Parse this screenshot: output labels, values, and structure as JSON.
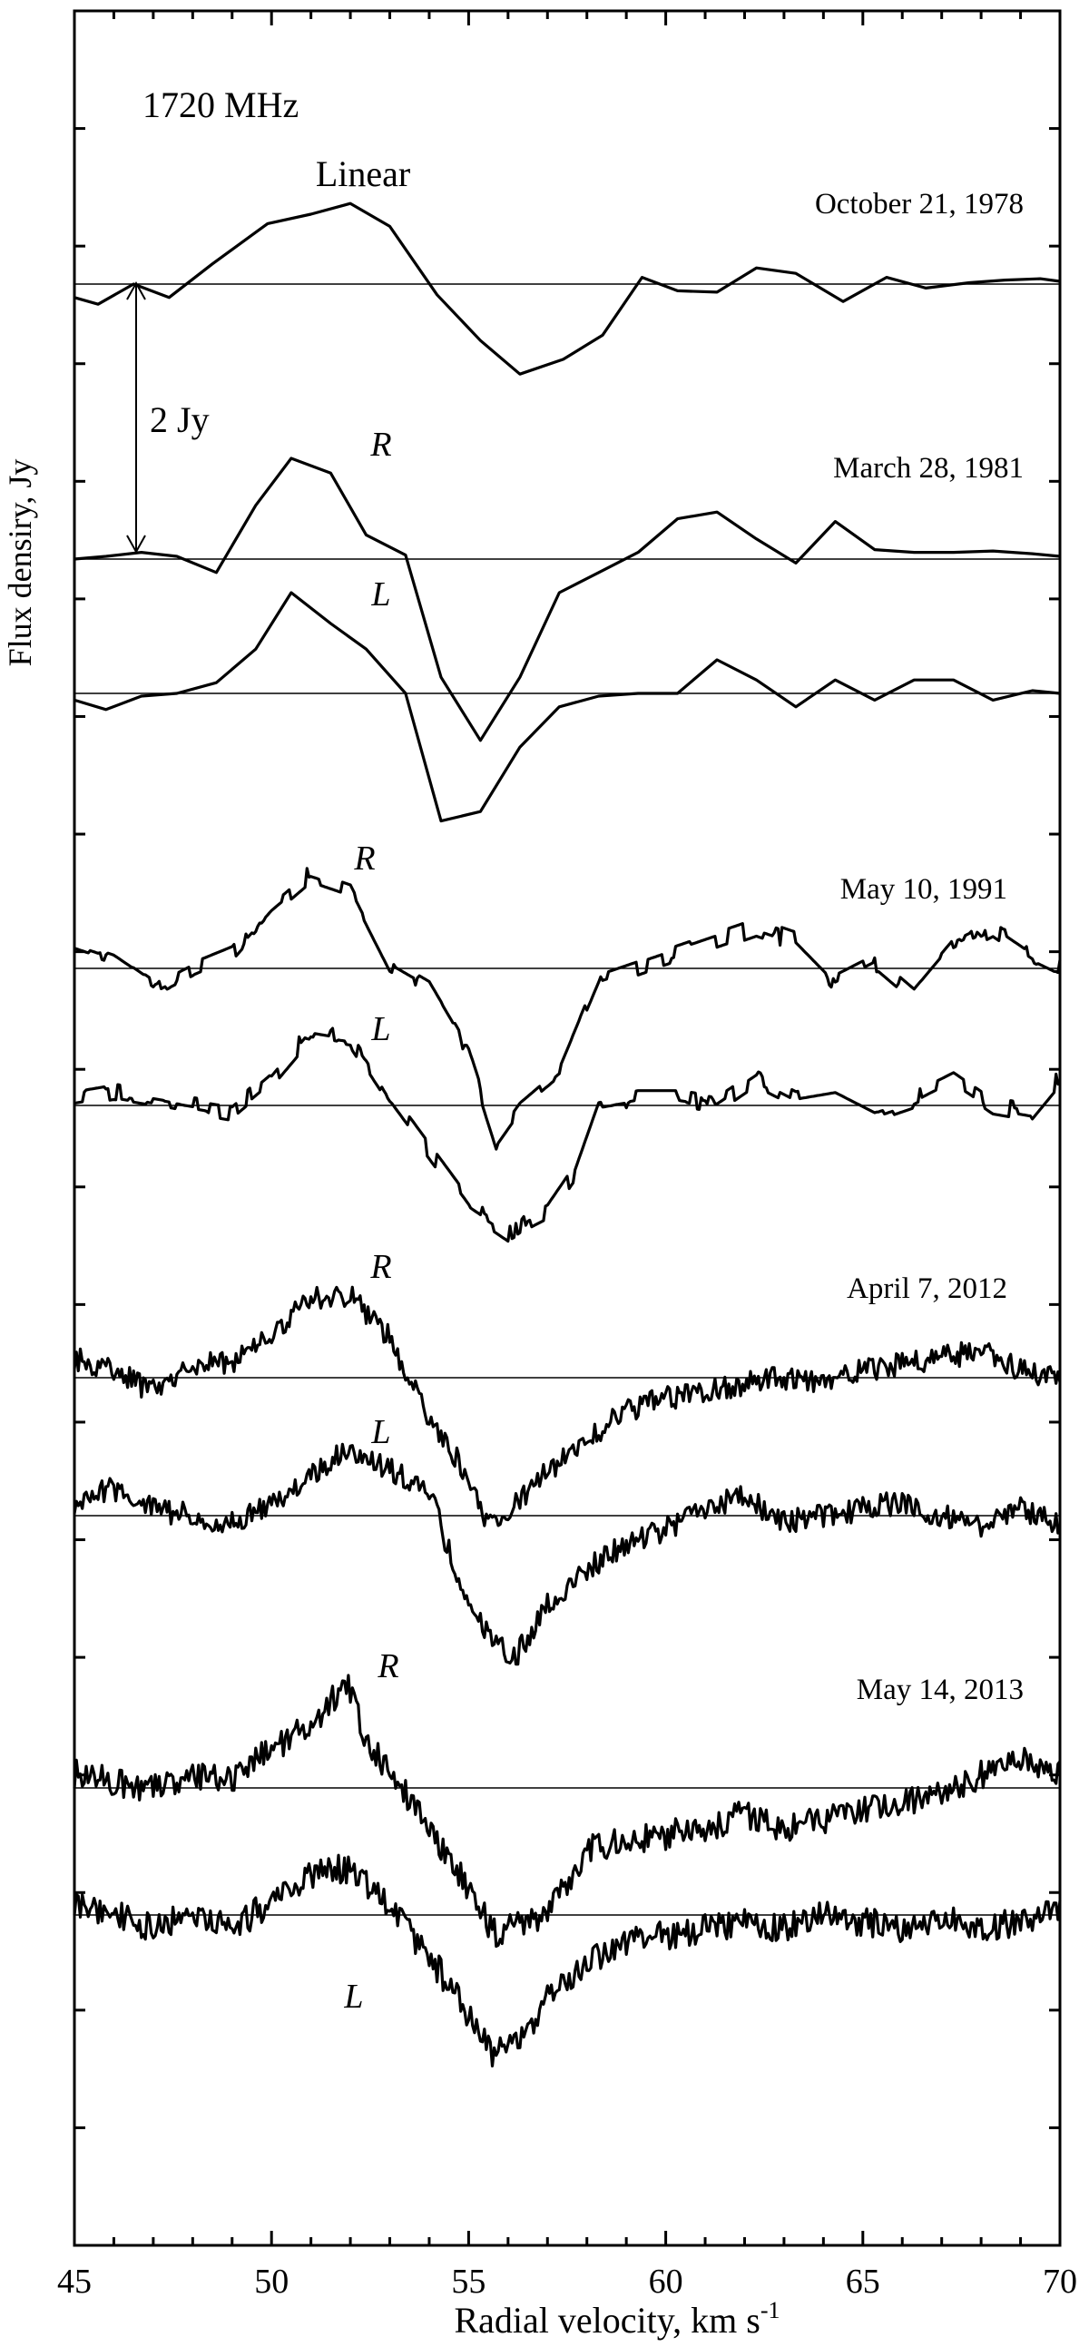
{
  "chart_data": {
    "type": "line",
    "title": "1720 MHz",
    "xlabel": "Radial velocity, km s",
    "xlabel_superscript": "-1",
    "ylabel": "Flux densiry, Jy",
    "xlim": [
      45,
      70
    ],
    "x_ticks": [
      45,
      50,
      55,
      60,
      65,
      70
    ],
    "x_tick_labels": [
      "45",
      "50",
      "55",
      "60",
      "65",
      "70"
    ],
    "y_tick_count": 19,
    "scale_bar": {
      "label": "2 Jy",
      "value_jy": 2
    },
    "grid": false,
    "legend": "none",
    "panels": [
      {
        "date": "October 21, 1978",
        "series": [
          {
            "name": "Linear",
            "x": [
              45,
              45.6,
              46.5,
              47.4,
              48.5,
              49.9,
              51,
              52,
              53,
              54.2,
              55.3,
              56.3,
              57.4,
              58.4,
              59.4,
              60.3,
              61.3,
              62.3,
              63.3,
              64.5,
              65.6,
              66.6,
              67.7,
              68.6,
              69.5,
              70
            ],
            "y": [
              -0.1,
              -0.15,
              0,
              -0.1,
              0.15,
              0.45,
              0.52,
              0.6,
              0.43,
              -0.08,
              -0.42,
              -0.67,
              -0.56,
              -0.38,
              0.05,
              -0.05,
              -0.06,
              0.12,
              0.08,
              -0.13,
              0.05,
              -0.03,
              0.01,
              0.03,
              0.04,
              0.02
            ]
          }
        ]
      },
      {
        "date": "March 28, 1981",
        "series": [
          {
            "name": "R",
            "x": [
              45,
              45.8,
              46.7,
              47.6,
              48.6,
              49.6,
              50.5,
              51.5,
              52.4,
              53.4,
              54.3,
              55.3,
              56.3,
              57.3,
              58.3,
              59.3,
              60.3,
              61.3,
              62.3,
              63.3,
              64.3,
              65.3,
              66.3,
              67.3,
              68.3,
              69.3,
              70
            ],
            "y": [
              0,
              0.02,
              0.05,
              0.02,
              -0.1,
              0.4,
              0.75,
              0.64,
              0.18,
              0.03,
              -0.88,
              -1.35,
              -0.88,
              -0.25,
              -0.1,
              0.05,
              0.3,
              0.35,
              0.15,
              -0.03,
              0.28,
              0.07,
              0.05,
              0.05,
              0.06,
              0.04,
              0.02
            ]
          },
          {
            "name": "L",
            "x": [
              45,
              45.8,
              46.7,
              47.6,
              48.6,
              49.6,
              50.5,
              51.5,
              52.4,
              53.4,
              54.3,
              55.3,
              56.3,
              57.3,
              58.3,
              59.3,
              60.3,
              61.3,
              62.3,
              63.3,
              64.3,
              65.3,
              66.3,
              67.3,
              68.3,
              69.3,
              70
            ],
            "y": [
              -0.05,
              -0.12,
              -0.02,
              0,
              0.08,
              0.33,
              0.75,
              0.52,
              0.33,
              0,
              -0.95,
              -0.88,
              -0.4,
              -0.1,
              -0.02,
              0,
              0,
              0.25,
              0.1,
              -0.1,
              0.1,
              -0.05,
              0.1,
              0.1,
              -0.05,
              0.02,
              0
            ]
          }
        ]
      },
      {
        "date": "May 10, 1991",
        "series": [
          {
            "name": "R",
            "x": [
              45,
              46,
              47,
              48,
              49,
              50,
              51,
              52,
              53,
              54,
              55,
              55.7,
              56.3,
              57.3,
              58.3,
              59.3,
              60.3,
              61.3,
              62.3,
              63.3,
              64.3,
              65.3,
              66.3,
              67.3,
              68.3,
              69.3,
              70
            ],
            "y": [
              0.15,
              0.05,
              -0.15,
              0,
              0.12,
              0.45,
              0.7,
              0.6,
              0.02,
              -0.15,
              -0.65,
              -1.3,
              -1.05,
              -0.8,
              -0.1,
              0.0,
              0.1,
              0.2,
              0.3,
              0.2,
              -0.1,
              0.05,
              -0.2,
              0.15,
              0.3,
              0.1,
              0
            ]
          },
          {
            "name": "L",
            "x": [
              45,
              46,
              47,
              48,
              49,
              50,
              51,
              52,
              53,
              54,
              55,
              56,
              57,
              57.7,
              58.3,
              59.3,
              60.3,
              61.3,
              62.3,
              63.3,
              64.3,
              65.3,
              66.3,
              67.3,
              68.3,
              69.3,
              70
            ],
            "y": [
              0.05,
              0.1,
              0.05,
              0,
              -0.05,
              0.2,
              0.55,
              0.5,
              0.05,
              -0.35,
              -0.75,
              -0.95,
              -0.8,
              -0.5,
              0,
              0.05,
              0.05,
              0,
              0.2,
              0.05,
              0.1,
              -0.05,
              0.05,
              0.2,
              0,
              -0.05,
              0.2
            ]
          }
        ]
      },
      {
        "date": "April 7, 2012",
        "series": [
          {
            "name": "R",
            "x": [
              45,
              46,
              47,
              48,
              49,
              50,
              51,
              52,
              53,
              53.8,
              54.6,
              55.5,
              56.2,
              57,
              58,
              59,
              60,
              61,
              62,
              63,
              64,
              65,
              66,
              67,
              68,
              69,
              70
            ],
            "y": [
              0.15,
              0.05,
              -0.1,
              0.1,
              0.1,
              0.3,
              0.6,
              0.6,
              0.3,
              -0.2,
              -0.55,
              -1.1,
              -0.95,
              -0.7,
              -0.45,
              -0.25,
              -0.15,
              -0.1,
              -0.05,
              0,
              -0.05,
              0.05,
              0.1,
              0.15,
              0.2,
              0.05,
              0
            ]
          },
          {
            "name": "L",
            "x": [
              45,
              46,
              47,
              48,
              49,
              50,
              51,
              52,
              53,
              54,
              54.8,
              55.6,
              56.2,
              57,
              58,
              59,
              60,
              61,
              62,
              63,
              64,
              65,
              66,
              67,
              68,
              69,
              70
            ],
            "y": [
              0.1,
              0.2,
              0.05,
              0,
              -0.05,
              0.1,
              0.3,
              0.5,
              0.35,
              0.2,
              -0.55,
              -0.95,
              -1.05,
              -0.65,
              -0.4,
              -0.2,
              -0.1,
              0.05,
              0.15,
              -0.05,
              0,
              0.05,
              0.1,
              0,
              -0.1,
              0.05,
              -0.05
            ]
          }
        ]
      },
      {
        "date": "May 14, 2013",
        "series": [
          {
            "name": "R",
            "x": [
              45,
              46,
              47,
              48,
              49,
              50,
              51,
              51.9,
              52.5,
              53.2,
              54,
              55,
              55.7,
              56.4,
              57,
              58,
              59,
              60,
              61,
              62,
              63,
              64,
              65,
              66,
              67,
              68,
              69,
              70
            ],
            "y": [
              0.1,
              0.05,
              0,
              0.1,
              0.05,
              0.3,
              0.45,
              0.8,
              0.3,
              0.05,
              -0.3,
              -0.75,
              -1.1,
              -1.0,
              -0.95,
              -0.45,
              -0.4,
              -0.35,
              -0.3,
              -0.2,
              -0.3,
              -0.25,
              -0.15,
              -0.1,
              -0.05,
              0.1,
              0.2,
              0.1
            ]
          },
          {
            "name": "L",
            "x": [
              45,
              46,
              47,
              48,
              49,
              50,
              51,
              52,
              53,
              54,
              55,
              55.6,
              56.3,
              57,
              58,
              59,
              60,
              61,
              62,
              63,
              64,
              65,
              66,
              67,
              68,
              69,
              70
            ],
            "y": [
              0.1,
              0,
              -0.1,
              0,
              -0.1,
              0.1,
              0.3,
              0.35,
              0.05,
              -0.3,
              -0.75,
              -1.05,
              -0.95,
              -0.6,
              -0.35,
              -0.2,
              -0.15,
              -0.1,
              -0.05,
              -0.1,
              0,
              -0.05,
              -0.1,
              0,
              -0.1,
              -0.05,
              0.05
            ]
          }
        ]
      }
    ]
  }
}
